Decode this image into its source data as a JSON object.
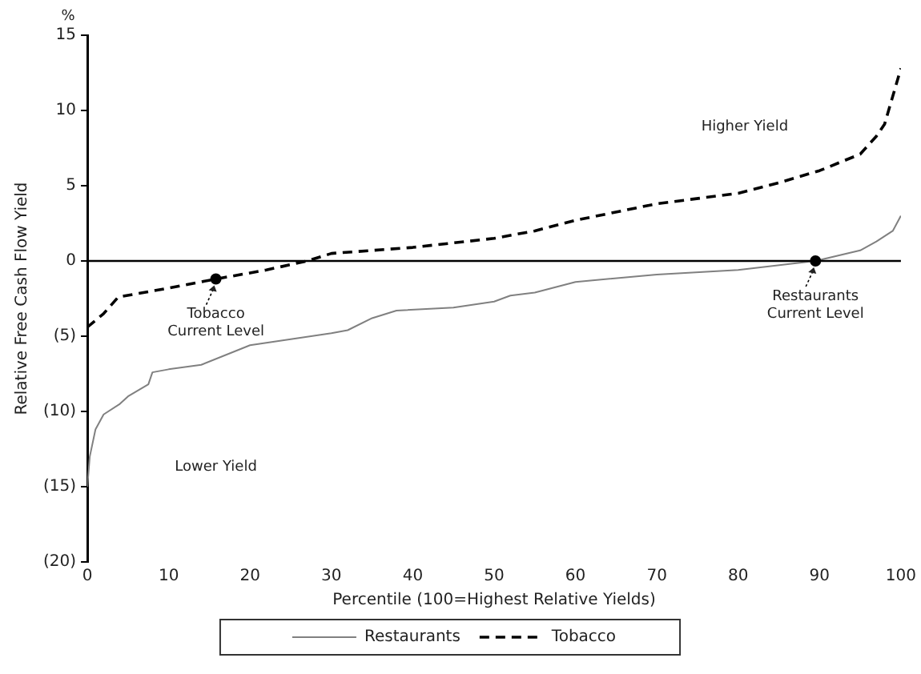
{
  "chart_data": {
    "type": "line",
    "xlabel": "Percentile (100=Highest Relative Yields)",
    "ylabel": "Relative Free Cash Flow Yield",
    "xlim": [
      0,
      100
    ],
    "xticks": [
      0,
      10,
      20,
      30,
      40,
      50,
      60,
      70,
      80,
      90,
      100
    ],
    "ylim": [
      -20,
      15
    ],
    "yticks": [
      {
        "value": -20,
        "label": "(20)"
      },
      {
        "value": -15,
        "label": "(15)"
      },
      {
        "value": -10,
        "label": "(10)"
      },
      {
        "value": -5,
        "label": "(5)"
      },
      0,
      5,
      10,
      15
    ],
    "grid": false,
    "legend": "bottom",
    "marker": "none",
    "series": [
      {
        "name": "Restaurants",
        "color": "#808080",
        "line_style": "solid",
        "x": [
          0,
          0.3,
          1,
          2,
          4,
          5,
          7.5,
          8,
          10,
          14,
          20,
          25,
          30,
          32,
          35,
          38,
          45,
          50,
          52,
          55,
          60,
          70,
          80,
          89.5,
          95,
          97,
          99,
          100
        ],
        "values": [
          -15,
          -13,
          -11.2,
          -10.2,
          -9.5,
          -9,
          -8.2,
          -7.4,
          -7.2,
          -6.9,
          -5.6,
          -5.2,
          -4.8,
          -4.6,
          -3.8,
          -3.3,
          -3.1,
          -2.7,
          -2.3,
          -2.1,
          -1.4,
          -0.9,
          -0.6,
          0,
          0.7,
          1.3,
          2,
          3
        ]
      },
      {
        "name": "Tobacco",
        "color": "#000000",
        "line_style": "dashed",
        "x": [
          0,
          2,
          3.8,
          10,
          15.8,
          22,
          27,
          30,
          40,
          50,
          55,
          60,
          70,
          80,
          85,
          90,
          95,
          97,
          98,
          100
        ],
        "values": [
          -4.4,
          -3.5,
          -2.4,
          -1.8,
          -1.2,
          -0.6,
          0,
          0.5,
          0.9,
          1.5,
          2,
          2.7,
          3.8,
          4.5,
          5.2,
          6,
          7.1,
          8.3,
          9.1,
          12.8
        ]
      }
    ],
    "ref_lines": [
      {
        "axis": "y",
        "value": 0,
        "color": "#000000",
        "line_style": "solid"
      }
    ],
    "annotations": [
      "%",
      "Higher Yield",
      "Lower Yield",
      {
        "text": "Tobacco\nCurrent Level",
        "x": 15.8,
        "y": -1.2
      },
      {
        "text": "Restaurants\nCurrent Level",
        "x": 89.5,
        "y": 0
      }
    ]
  }
}
